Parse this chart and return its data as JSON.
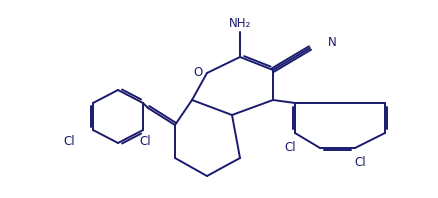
{
  "background": "#ffffff",
  "line_color": "#1a1a6e",
  "line_width": 1.4,
  "label_fontsize": 8.5,
  "NH2_label": "NH₂",
  "N_label": "N",
  "O_label": "O",
  "Cl_label": "Cl"
}
